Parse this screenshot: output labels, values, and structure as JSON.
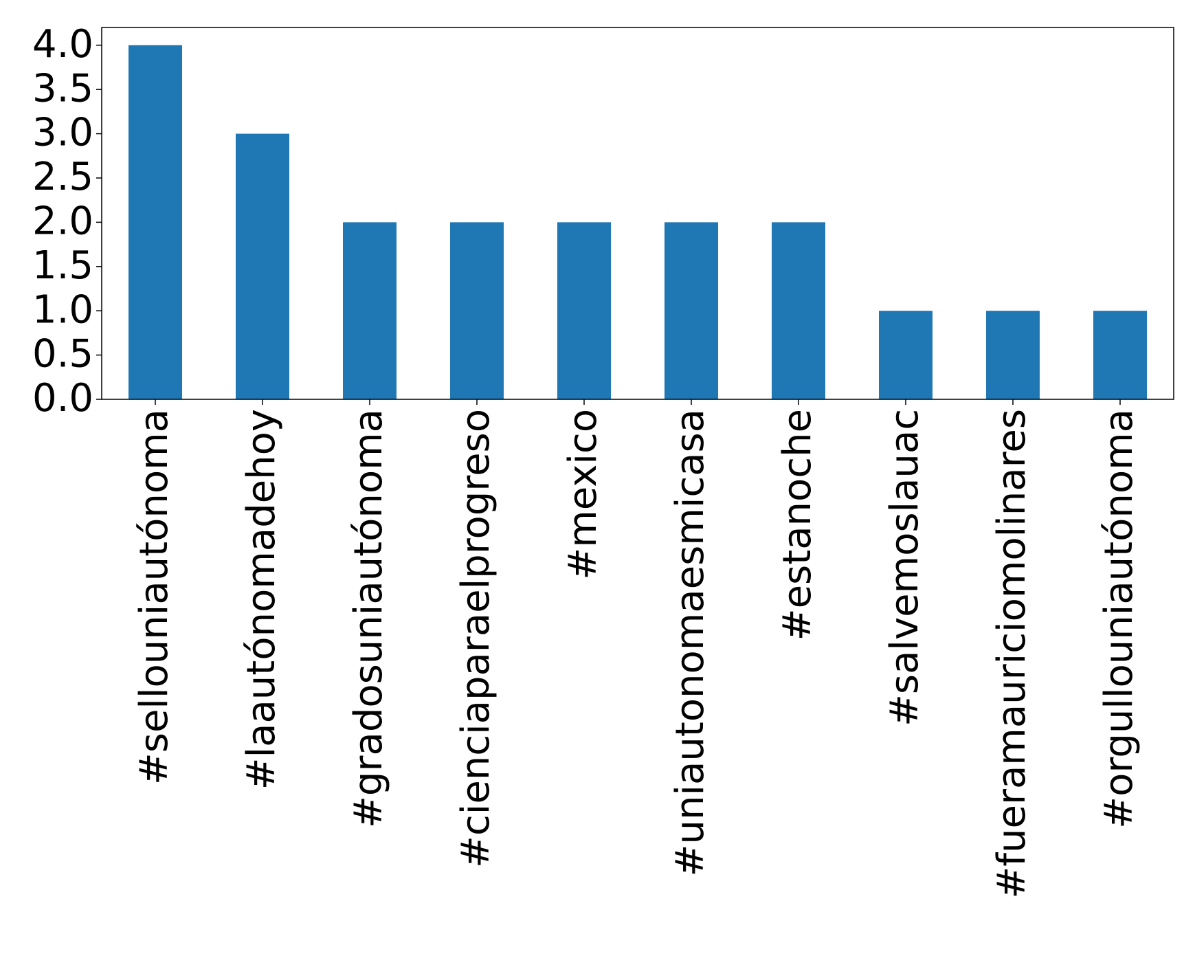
{
  "chart_data": {
    "type": "bar",
    "categories": [
      "#sellouniautónoma",
      "#laautónomadehoy",
      "#gradosuniautónoma",
      "#cienciaparaelprogreso",
      "#mexico",
      "#uniautonomaesmicasa",
      "#estanoche",
      "#salvemoslauac",
      "#fueramauriciomolinares",
      "#orgullouniautónoma"
    ],
    "values": [
      4,
      3,
      2,
      2,
      2,
      2,
      2,
      1,
      1,
      1
    ],
    "color": "#1f77b4",
    "ylim": [
      0,
      4.2
    ],
    "yticks": [
      {
        "value": 0,
        "label": "0.0"
      },
      {
        "value": 0.5,
        "label": "0.5"
      },
      {
        "value": 1,
        "label": "1.0"
      },
      {
        "value": 1.5,
        "label": "1.5"
      },
      {
        "value": 2,
        "label": "2.0"
      },
      {
        "value": 2.5,
        "label": "2.5"
      },
      {
        "value": 3,
        "label": "3.0"
      },
      {
        "value": 3.5,
        "label": "3.5"
      },
      {
        "value": 4,
        "label": "4.0"
      }
    ],
    "grid": false
  }
}
